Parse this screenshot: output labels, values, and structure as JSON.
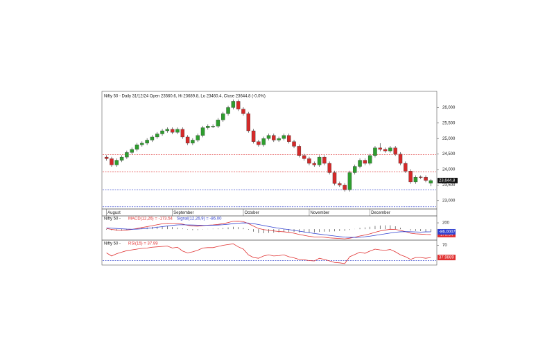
{
  "chart_data": [
    {
      "type": "candlestick",
      "title": "Nifty 50 - Daily 31/12/24 Open 23560.6, Hi 23689.8, Lo 23460.4, Close 23644.8 (-0.0%)",
      "categories": [
        "August",
        null,
        null,
        null,
        null,
        null,
        null,
        null,
        null,
        null,
        null,
        null,
        null,
        "September",
        null,
        null,
        null,
        null,
        null,
        null,
        null,
        null,
        null,
        null,
        null,
        null,
        null,
        "October",
        null,
        null,
        null,
        null,
        null,
        null,
        null,
        null,
        null,
        null,
        null,
        null,
        "November",
        null,
        null,
        null,
        null,
        null,
        null,
        null,
        null,
        null,
        null,
        null,
        "December",
        null,
        null,
        null,
        null,
        null,
        null,
        null,
        null,
        null,
        null,
        null,
        null
      ],
      "ohlc": [
        [
          24400,
          24460,
          24290,
          24350
        ],
        [
          24350,
          24410,
          24090,
          24150
        ],
        [
          24150,
          24360,
          24090,
          24300
        ],
        [
          24300,
          24460,
          24240,
          24400
        ],
        [
          24400,
          24610,
          24340,
          24550
        ],
        [
          24550,
          24710,
          24490,
          24650
        ],
        [
          24650,
          24860,
          24590,
          24800
        ],
        [
          24800,
          24910,
          24740,
          24850
        ],
        [
          24850,
          25010,
          24790,
          24950
        ],
        [
          24950,
          25110,
          24890,
          25050
        ],
        [
          25050,
          25210,
          24990,
          25150
        ],
        [
          25150,
          25310,
          25090,
          25250
        ],
        [
          25250,
          25360,
          25190,
          25300
        ],
        [
          25300,
          25360,
          25140,
          25200
        ],
        [
          25200,
          25360,
          25140,
          25300
        ],
        [
          25300,
          25360,
          24990,
          25050
        ],
        [
          25050,
          25110,
          24790,
          24850
        ],
        [
          24850,
          25010,
          24790,
          24950
        ],
        [
          24950,
          25160,
          24890,
          25100
        ],
        [
          25100,
          25410,
          25040,
          25350
        ],
        [
          25350,
          25460,
          25290,
          25400
        ],
        [
          25380,
          25460,
          25340,
          25400
        ],
        [
          25400,
          25660,
          25340,
          25600
        ],
        [
          25600,
          25860,
          25540,
          25800
        ],
        [
          25800,
          26060,
          25740,
          26000
        ],
        [
          26000,
          26260,
          25940,
          26200
        ],
        [
          26200,
          26260,
          25890,
          25950
        ],
        [
          25950,
          26010,
          25740,
          25800
        ],
        [
          25800,
          25860,
          25190,
          25250
        ],
        [
          25250,
          25310,
          24840,
          24900
        ],
        [
          24900,
          24960,
          24740,
          24800
        ],
        [
          24800,
          25060,
          24740,
          25000
        ],
        [
          25000,
          25160,
          24940,
          25100
        ],
        [
          25100,
          25160,
          24890,
          24950
        ],
        [
          24950,
          25060,
          24890,
          25000
        ],
        [
          25000,
          25160,
          24940,
          25100
        ],
        [
          25100,
          25160,
          24840,
          24900
        ],
        [
          24900,
          24960,
          24690,
          24750
        ],
        [
          24750,
          24810,
          24390,
          24450
        ],
        [
          24450,
          24510,
          24290,
          24350
        ],
        [
          24350,
          24410,
          24140,
          24200
        ],
        [
          24200,
          24260,
          24090,
          24150
        ],
        [
          24150,
          24460,
          24090,
          24400
        ],
        [
          24400,
          24460,
          24140,
          24200
        ],
        [
          24200,
          24260,
          23840,
          23900
        ],
        [
          23900,
          23960,
          23490,
          23550
        ],
        [
          23550,
          23610,
          23440,
          23500
        ],
        [
          23500,
          23560,
          23290,
          23350
        ],
        [
          23350,
          23960,
          23290,
          23900
        ],
        [
          23900,
          24160,
          23840,
          24100
        ],
        [
          24100,
          24360,
          24040,
          24300
        ],
        [
          24300,
          24360,
          24140,
          24200
        ],
        [
          24200,
          24510,
          24140,
          24450
        ],
        [
          24450,
          24760,
          24390,
          24700
        ],
        [
          24700,
          24850,
          24590,
          24650
        ],
        [
          24650,
          24710,
          24540,
          24600
        ],
        [
          24600,
          24760,
          24540,
          24700
        ],
        [
          24700,
          24760,
          24440,
          24500
        ],
        [
          24500,
          24560,
          24140,
          24200
        ],
        [
          24200,
          24260,
          23890,
          23950
        ],
        [
          23950,
          24010,
          23540,
          23600
        ],
        [
          23600,
          23810,
          23540,
          23750
        ],
        [
          23760,
          23810,
          23690,
          23750
        ],
        [
          23750,
          23810,
          23590,
          23650
        ],
        [
          23560.6,
          23689.8,
          23460.4,
          23644.8
        ]
      ],
      "up_color": "#2e9e2e",
      "down_color": "#d42a2a",
      "close_label": "23,644.8",
      "ylim": [
        22750,
        26500
      ],
      "yticks": [
        {
          "value": 23000,
          "label": "23,000"
        },
        {
          "value": 23500,
          "label": "23,500"
        },
        {
          "value": 24000,
          "label": "24,000"
        },
        {
          "value": 24500,
          "label": "24,500"
        },
        {
          "value": 25000,
          "label": "25,000"
        },
        {
          "value": 25500,
          "label": "25,500"
        },
        {
          "value": 26000,
          "label": "26,000"
        }
      ],
      "reference_lines": [
        {
          "value": 24480,
          "color": "#e04040"
        },
        {
          "value": 23930,
          "color": "#e04040"
        },
        {
          "value": 23350,
          "color": "#4050d0"
        },
        {
          "value": 22800,
          "color": "#4050d0"
        }
      ]
    },
    {
      "type": "line",
      "title": "Nifty 50 -",
      "series": [
        {
          "name": "MACD(12,26) = -173.54",
          "color": "#e03030",
          "values": [
            20,
            -10,
            -30,
            -40,
            -30,
            -10,
            20,
            50,
            80,
            110,
            140,
            170,
            190,
            185,
            185,
            160,
            120,
            100,
            95,
            110,
            125,
            135,
            150,
            175,
            210,
            250,
            255,
            240,
            175,
            95,
            20,
            -15,
            -35,
            -60,
            -75,
            -85,
            -105,
            -130,
            -170,
            -200,
            -230,
            -250,
            -250,
            -260,
            -280,
            -290,
            -300,
            -310,
            -290,
            -260,
            -220,
            -190,
            -150,
            -100,
            -60,
            -30,
            -5,
            -10,
            -40,
            -80,
            -130,
            -150,
            -160,
            -170,
            -173.54
          ]
        },
        {
          "name": "Signal(12,26,9) = -86.00",
          "color": "#3040d0",
          "values": [
            40,
            30,
            20,
            10,
            0,
            -5,
            0,
            10,
            25,
            40,
            60,
            80,
            100,
            120,
            135,
            140,
            135,
            130,
            125,
            120,
            120,
            125,
            130,
            140,
            155,
            175,
            190,
            200,
            195,
            175,
            145,
            115,
            85,
            55,
            30,
            5,
            -15,
            -40,
            -65,
            -90,
            -115,
            -140,
            -160,
            -180,
            -200,
            -220,
            -240,
            -255,
            -265,
            -265,
            -260,
            -245,
            -225,
            -200,
            -175,
            -150,
            -125,
            -100,
            -85,
            -80,
            -85,
            -90,
            -95,
            -88,
            -86.0007
          ]
        }
      ],
      "histogram": {
        "color": "#222222",
        "values": [
          -20,
          -40,
          -50,
          -50,
          -30,
          -5,
          20,
          40,
          55,
          70,
          80,
          90,
          90,
          65,
          50,
          20,
          -15,
          -30,
          -30,
          -10,
          5,
          10,
          20,
          35,
          55,
          75,
          65,
          40,
          -20,
          -80,
          -125,
          -130,
          -120,
          -115,
          -105,
          -90,
          -90,
          -90,
          -105,
          -110,
          -115,
          -110,
          -90,
          -80,
          -80,
          -70,
          -60,
          -55,
          -25,
          5,
          40,
          55,
          75,
          100,
          115,
          120,
          120,
          90,
          45,
          0,
          -45,
          -60,
          -65,
          -82,
          -87.54
        ]
      },
      "ylim": [
        -330,
        400
      ],
      "yticks": [
        200
      ]
    },
    {
      "type": "line",
      "title": "Nifty 50 -",
      "series": [
        {
          "name": "RSI(15) = 37.99",
          "color": "#e03030",
          "values": [
            50,
            42,
            48,
            52,
            56,
            58,
            60,
            62,
            63,
            65,
            66,
            67,
            68,
            63,
            65,
            55,
            50,
            53,
            57,
            63,
            64,
            64,
            67,
            70,
            72,
            74,
            66,
            60,
            45,
            38,
            36,
            42,
            45,
            42,
            43,
            45,
            40,
            37,
            33,
            32,
            30,
            29,
            36,
            33,
            29,
            25,
            24,
            22,
            40,
            46,
            52,
            49,
            55,
            60,
            58,
            57,
            59,
            53,
            45,
            40,
            33,
            38,
            38,
            36,
            37.9889
          ]
        }
      ],
      "reference_lines": [
        {
          "value": 30,
          "color": "#4050d0"
        }
      ],
      "ylim": [
        20,
        80
      ],
      "yticks": [
        70
      ]
    }
  ]
}
